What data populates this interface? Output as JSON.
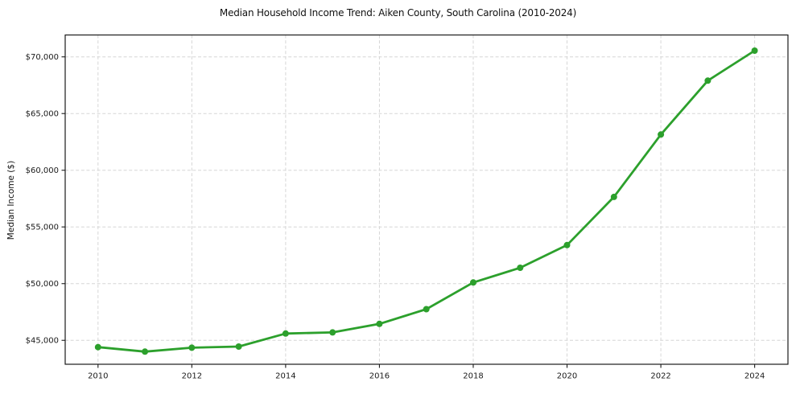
{
  "figure": {
    "background": "#ffffff"
  },
  "chart_data": {
    "type": "line",
    "title": "Median Household Income Trend: Aiken County, South Carolina (2010-2024)",
    "xlabel": "",
    "ylabel": "Median Income ($)",
    "x": [
      2010,
      2011,
      2012,
      2013,
      2014,
      2015,
      2016,
      2017,
      2018,
      2019,
      2020,
      2021,
      2022,
      2023,
      2024
    ],
    "series": [
      {
        "name": "Median household income",
        "color": "#2ca02c",
        "values": [
          44400,
          44000,
          44350,
          44450,
          45600,
          45700,
          46450,
          47750,
          50100,
          51400,
          53400,
          57650,
          63150,
          67900,
          70550
        ]
      }
    ],
    "xticks": [
      2010,
      2012,
      2014,
      2016,
      2018,
      2020,
      2022,
      2024
    ],
    "xtick_labels": [
      "2010",
      "2012",
      "2014",
      "2016",
      "2018",
      "2020",
      "2022",
      "2024"
    ],
    "yticks": [
      45000,
      50000,
      55000,
      60000,
      65000,
      70000
    ],
    "ytick_labels": [
      "$45,000",
      "$50,000",
      "$55,000",
      "$60,000",
      "$65,000",
      "$70,000"
    ],
    "xlim": [
      2009.3,
      2024.71
    ],
    "ylim": [
      42890,
      71930
    ],
    "grid": true,
    "grid_on": "both",
    "grid_color": "#d6d6d6",
    "axis_color": "#1a1a1a",
    "tick_label_color": "#1a1a1a",
    "line_width": 2.8,
    "marker": "circle",
    "marker_size": 8,
    "legend_position": "none"
  }
}
